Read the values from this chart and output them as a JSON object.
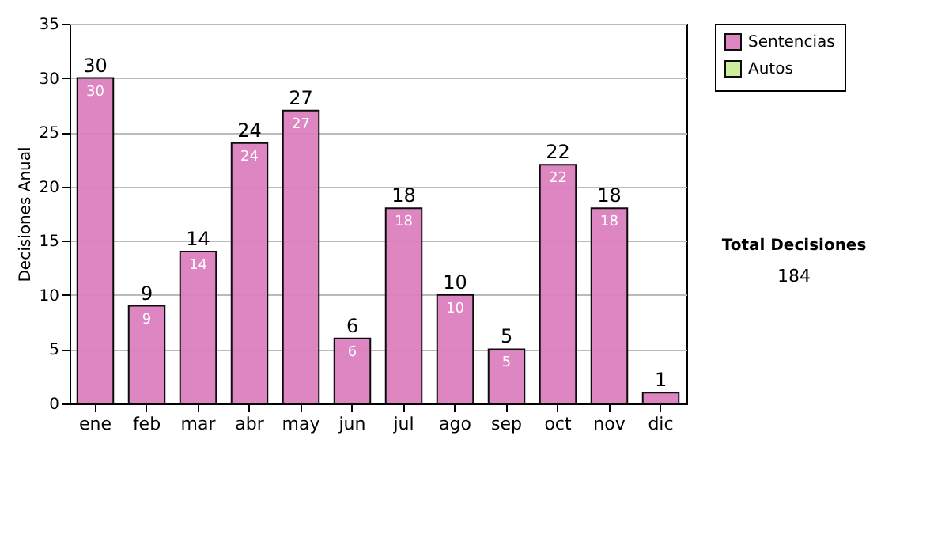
{
  "chart_data": {
    "type": "bar",
    "stacked": true,
    "ylabel": "Decisiones Anual",
    "categories": [
      "ene",
      "feb",
      "mar",
      "abr",
      "may",
      "jun",
      "jul",
      "ago",
      "sep",
      "oct",
      "nov",
      "dic"
    ],
    "series": [
      {
        "name": "Sentencias",
        "color": "#dd80bf",
        "values": [
          30,
          9,
          14,
          24,
          27,
          6,
          18,
          10,
          5,
          22,
          18,
          1
        ],
        "value_labels": [
          "30",
          "9",
          "14",
          "24",
          "27",
          "6",
          "18",
          "10",
          "5",
          "22",
          "18",
          null
        ]
      },
      {
        "name": "Autos",
        "color": "#ccee99",
        "values": [
          0,
          0,
          0,
          0,
          0,
          0,
          0,
          0,
          0,
          0,
          0,
          0
        ]
      }
    ],
    "totals": [
      "30",
      "9",
      "14",
      "24",
      "27",
      "6",
      "18",
      "10",
      "5",
      "22",
      "18",
      "1"
    ],
    "ylim": [
      0,
      35
    ],
    "yticks": [
      0,
      5,
      10,
      15,
      20,
      25,
      30,
      35
    ],
    "grid": "y",
    "legend": "right",
    "annotations": [
      "Total Decisiones",
      "184"
    ]
  }
}
